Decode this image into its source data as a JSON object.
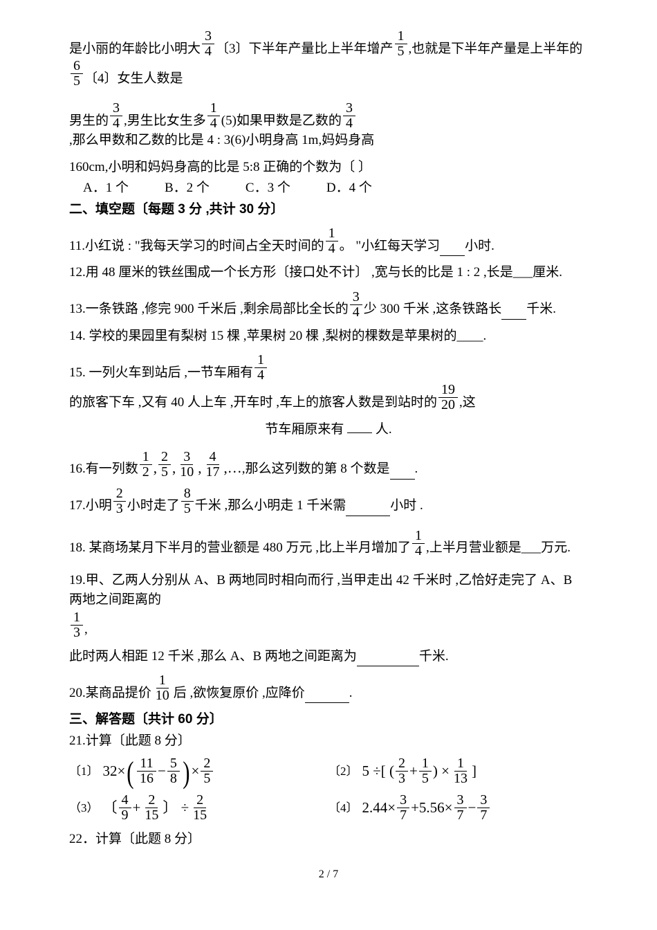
{
  "topFragment": {
    "a": "是小丽的年龄比小明大",
    "f1_n": "3",
    "f1_d": "4",
    "b": "〔3〕下半年产量比上半年增产",
    "f2_n": "1",
    "f2_d": "5",
    "c": " ,也就是下半年产量是上半年的",
    "f3_n": "6",
    "f3_d": "5",
    "d": "〔4〕女生人数是"
  },
  "topFragment2": {
    "a": "男生的",
    "f1_n": "3",
    "f1_d": "4",
    "b": " ,男生比女生多",
    "f2_n": "1",
    "f2_d": "4",
    "c": " (5)如果甲数是乙数的",
    "f3_n": "3",
    "f3_d": "4",
    "d": " ,那么甲数和乙数的比是 4 : 3(6)小明身高 1m,妈妈身高"
  },
  "topFragment3": "160cm,小明和妈妈身高的比是 5:8 正确的个数为〔   〕",
  "choices": {
    "A": "A．1 个",
    "B": "B．2 个",
    "C": "C．3 个",
    "D": "D．4 个"
  },
  "section2Title": "二、填空题〔每题 3 分 ,共计 30 分〕",
  "q11": {
    "a": "11.小红说 : \"我每天学习的时间占全天时间的",
    "f_n": "1",
    "f_d": "4",
    "b": "。 \"小红每天学习",
    "c": "小时."
  },
  "q12": "12.用 48 厘米的铁丝围成一个长方形〔接口处不计〕 ,宽与长的比是 1 : 2 ,长是___厘米.",
  "q13": {
    "a": "13.一条铁路 ,修完 900 千米后 ,剩余局部比全长的",
    "f_n": "3",
    "f_d": "4",
    "b": " 少 300 千米 ,这条铁路长",
    "c": "千米."
  },
  "q14": "14. 学校的果园里有梨树 15 棵 ,苹果树 20 棵 ,梨树的棵数是苹果树的____.",
  "q15": {
    "a": "15. 一列火车到站后 ,一节车厢有",
    "f1_n": "1",
    "f1_d": "4",
    "b": " 的旅客下车 ,又有 40 人上车 ,开车时 ,车上的旅客人数是到站时的",
    "f2_n": "19",
    "f2_d": "20",
    "c": " ,这",
    "tail": "节车厢原来有",
    "tail2": "人."
  },
  "q16": {
    "a": "16.有一列数",
    "seq_n": [
      "1",
      "2",
      "3",
      "4"
    ],
    "seq_d": [
      "2",
      "5",
      "10",
      "17"
    ],
    "ell": ",…",
    "b": " ,那么这列数的第 8 个数是",
    "c": "."
  },
  "q17": {
    "a": "17.小明",
    "f1_n": "2",
    "f1_d": "3",
    "b": " 小时走了",
    "f2_n": "8",
    "f2_d": "5",
    "c": " 千米 ,那么小明走 1 千米需",
    "d": "小时 ."
  },
  "q18": {
    "a": "18. 某商场某月下半月的营业额是 480 万元 ,比上半月增加了",
    "f_n": "1",
    "f_d": "4",
    "b": " ,上半月营业额是___万元."
  },
  "q19": {
    "a": "19.甲、乙两人分别从 A、B 两地同时相向而行 ,当甲走出 42 千米时 ,乙恰好走完了 A、B 两地之间距离的",
    "f_n": "1",
    "f_d": "3",
    "b": " ,",
    "line2a": "此时两人相距 12 千米 ,那么 A、B 两地之间距离为",
    "line2b": "千米."
  },
  "q20": {
    "a": "20.某商品提价",
    "f_n": "1",
    "f_d": "10",
    "b": " 后 ,欲恢复原价 ,应降价",
    "c": "."
  },
  "section3Title": "三、解答题〔共计 60 分〕",
  "q21Title": "21.计算〔此题 8 分〕",
  "calc": {
    "c1": {
      "label": "〔1〕",
      "lead": "32×",
      "f1_n": "11",
      "f1_d": "16",
      "mid": "−",
      "f2_n": "5",
      "f2_d": "8",
      "after": "×",
      "f3_n": "2",
      "f3_d": "5"
    },
    "c2": {
      "label": "〔2〕",
      "lead": "5 ÷[ (",
      "f1_n": "2",
      "f1_d": "3",
      "plus": " + ",
      "f2_n": "1",
      "f2_d": "5",
      "mid": ") ×",
      "f3_n": "1",
      "f3_d": "13",
      "end": "]"
    },
    "c3": {
      "label": "（3）",
      "open": "〔",
      "f1_n": "4",
      "f1_d": "9",
      "plus": " + ",
      "f2_n": "2",
      "f2_d": "15",
      "close": " 〕 ÷",
      "f3_n": "2",
      "f3_d": "15"
    },
    "c4": {
      "label": "〔4〕",
      "a": "2.44×",
      "f1_n": "3",
      "f1_d": "7",
      "b": "+5.56×",
      "f2_n": "3",
      "f2_d": "7",
      "c": "−",
      "f3_n": "3",
      "f3_d": "7"
    }
  },
  "q22": "22．计算〔此题 8 分〕",
  "footer": "2 / 7"
}
